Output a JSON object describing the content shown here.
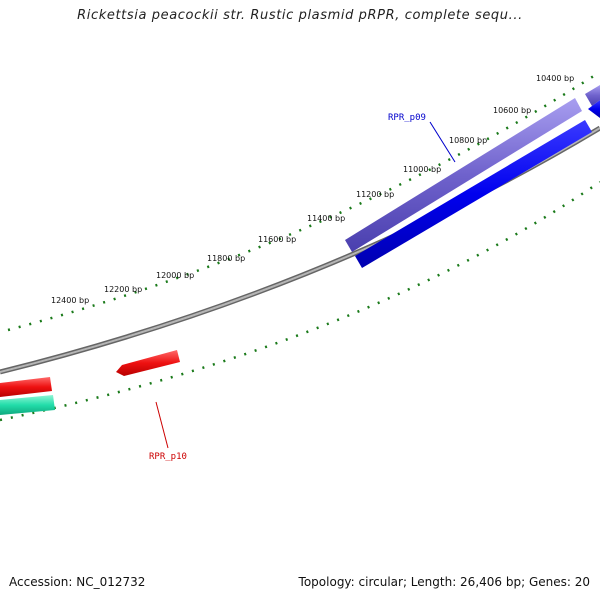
{
  "title": "Rickettsia peacockii str. Rustic plasmid pRPR, complete sequ...",
  "footer": {
    "accession": "Accession: NC_012732",
    "info": "Topology: circular; Length: 26,406 bp; Genes: 20"
  },
  "ticks": [
    {
      "label": "10400 bp"
    },
    {
      "label": "10600 bp"
    },
    {
      "label": "10800 bp"
    },
    {
      "label": "11000 bp"
    },
    {
      "label": "11200 bp"
    },
    {
      "label": "11400 bp"
    },
    {
      "label": "11600 bp"
    },
    {
      "label": "11800 bp"
    },
    {
      "label": "12000 bp"
    },
    {
      "label": "12200 bp"
    },
    {
      "label": "12400 bp"
    }
  ],
  "genes": [
    {
      "name": "RPR_p09",
      "color": "#0000cc"
    },
    {
      "name": "RPR_p10",
      "color": "#cc0000"
    }
  ],
  "colors": {
    "backbone": "#808080",
    "tick": "#1a7a1a",
    "forward_feature": "#7a6fd6",
    "reverse_feature": "#0000ee",
    "red_feature": "#ee1111",
    "teal_feature": "#22ddaa"
  }
}
